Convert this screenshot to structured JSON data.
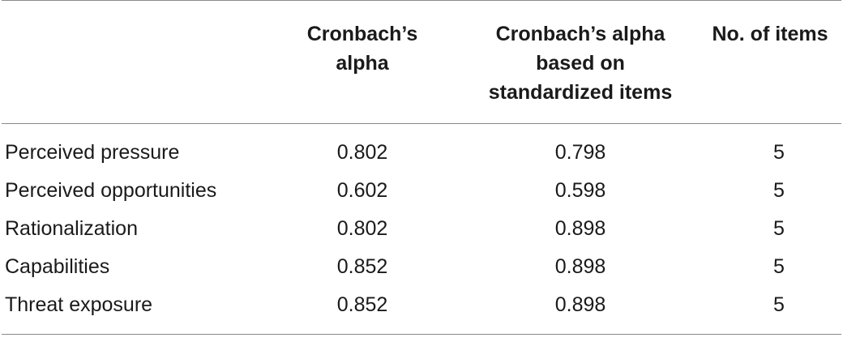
{
  "table": {
    "headers": [
      "",
      "Cronbach’s\nalpha",
      "Cronbach’s alpha\nbased on\nstandardized items",
      "No. of items"
    ],
    "rows": [
      {
        "construct": "Perceived pressure",
        "alpha": "0.802",
        "alpha_std": "0.798",
        "items": "5"
      },
      {
        "construct": "Perceived opportunities",
        "alpha": "0.602",
        "alpha_std": "0.598",
        "items": "5"
      },
      {
        "construct": "Rationalization",
        "alpha": "0.802",
        "alpha_std": "0.898",
        "items": "5"
      },
      {
        "construct": "Capabilities",
        "alpha": "0.852",
        "alpha_std": "0.898",
        "items": "5"
      },
      {
        "construct": "Threat exposure",
        "alpha": "0.852",
        "alpha_std": "0.898",
        "items": "5"
      }
    ]
  }
}
